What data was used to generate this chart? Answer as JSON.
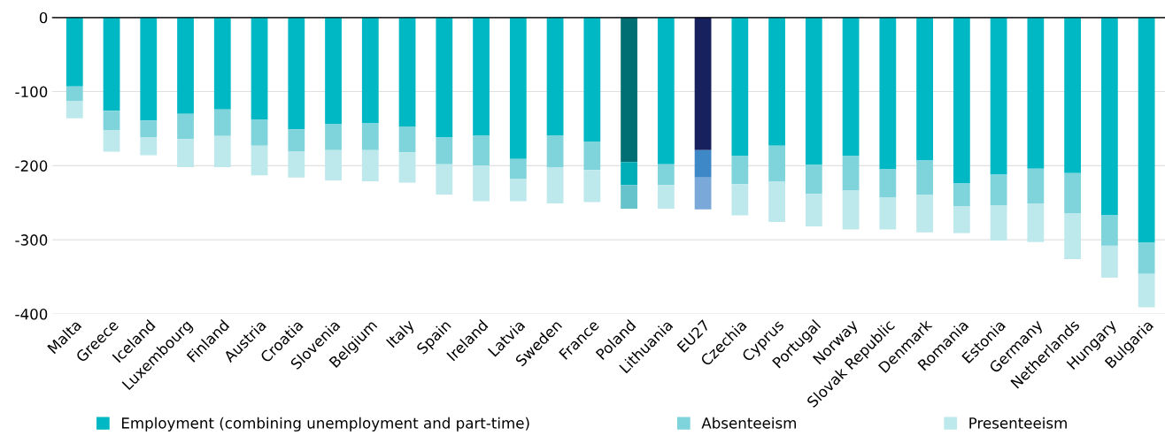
{
  "chart_data": {
    "type": "bar",
    "stacked": true,
    "categories": [
      "Malta",
      "Greece",
      "Iceland",
      "Luxembourg",
      "Finland",
      "Austria",
      "Croatia",
      "Slovenia",
      "Belgium",
      "Italy",
      "Spain",
      "Ireland",
      "Latvia",
      "Sweden",
      "France",
      "Poland",
      "Lithuania",
      "EU27",
      "Czechia",
      "Cyprus",
      "Portugal",
      "Norway",
      "Slovak Republic",
      "Denmark",
      "Romania",
      "Estonia",
      "Germany",
      "Netherlands",
      "Hungary",
      "Bulgaria"
    ],
    "series": [
      {
        "name": "Employment (combining unemployment and part-time)",
        "color": "#00b8c4",
        "colors": [
          "#00b8c4",
          "#00b8c4",
          "#00b8c4",
          "#00b8c4",
          "#00b8c4",
          "#00b8c4",
          "#00b8c4",
          "#00b8c4",
          "#00b8c4",
          "#00b8c4",
          "#00b8c4",
          "#00b8c4",
          "#00b8c4",
          "#00b8c4",
          "#00b8c4",
          "#006f73",
          "#00b8c4",
          "#17215e",
          "#00b8c4",
          "#00b8c4",
          "#00b8c4",
          "#00b8c4",
          "#00b8c4",
          "#00b8c4",
          "#00b8c4",
          "#00b8c4",
          "#00b8c4",
          "#00b8c4",
          "#00b8c4",
          "#00b8c4"
        ],
        "values": [
          -93,
          -126,
          -139,
          -130,
          -124,
          -138,
          -151,
          -144,
          -143,
          -147,
          -162,
          -159,
          -191,
          -159,
          -168,
          -195,
          -198,
          -179,
          -187,
          -173,
          -199,
          -187,
          -205,
          -193,
          -224,
          -212,
          -204,
          -210,
          -267,
          -304
        ]
      },
      {
        "name": "Absenteeism",
        "color": "#7fd4dc",
        "colors": [
          "#7fd4dc",
          "#7fd4dc",
          "#7fd4dc",
          "#7fd4dc",
          "#7fd4dc",
          "#7fd4dc",
          "#7fd4dc",
          "#7fd4dc",
          "#7fd4dc",
          "#7fd4dc",
          "#7fd4dc",
          "#7fd4dc",
          "#7fd4dc",
          "#7fd4dc",
          "#7fd4dc",
          "#00aeb8",
          "#7fd4dc",
          "#3f88c8",
          "#7fd4dc",
          "#7fd4dc",
          "#7fd4dc",
          "#7fd4dc",
          "#7fd4dc",
          "#7fd4dc",
          "#7fd4dc",
          "#7fd4dc",
          "#7fd4dc",
          "#7fd4dc",
          "#7fd4dc",
          "#7fd4dc"
        ],
        "values": [
          -20,
          -26,
          -23,
          -34,
          -36,
          -35,
          -30,
          -35,
          -36,
          -35,
          -36,
          -41,
          -27,
          -43,
          -38,
          -31,
          -28,
          -37,
          -38,
          -48,
          -39,
          -46,
          -38,
          -46,
          -31,
          -42,
          -47,
          -54,
          -41,
          -42
        ]
      },
      {
        "name": "Presenteeism",
        "color": "#bde8ec",
        "colors": [
          "#bde8ec",
          "#bde8ec",
          "#bde8ec",
          "#bde8ec",
          "#bde8ec",
          "#bde8ec",
          "#bde8ec",
          "#bde8ec",
          "#bde8ec",
          "#bde8ec",
          "#bde8ec",
          "#bde8ec",
          "#bde8ec",
          "#bde8ec",
          "#bde8ec",
          "#66c3cc",
          "#bde8ec",
          "#7aa8d8",
          "#bde8ec",
          "#bde8ec",
          "#bde8ec",
          "#bde8ec",
          "#bde8ec",
          "#bde8ec",
          "#bde8ec",
          "#bde8ec",
          "#bde8ec",
          "#bde8ec",
          "#bde8ec",
          "#bde8ec"
        ],
        "values": [
          -23,
          -29,
          -24,
          -38,
          -42,
          -40,
          -35,
          -41,
          -42,
          -41,
          -41,
          -48,
          -30,
          -49,
          -43,
          -32,
          -32,
          -43,
          -42,
          -55,
          -44,
          -53,
          -43,
          -51,
          -36,
          -47,
          -52,
          -62,
          -43,
          -45
        ]
      }
    ],
    "ylim": [
      -400,
      0
    ],
    "yticks": [
      0,
      -100,
      -200,
      -300,
      -400
    ],
    "grid": "y",
    "legend": "bottom"
  }
}
